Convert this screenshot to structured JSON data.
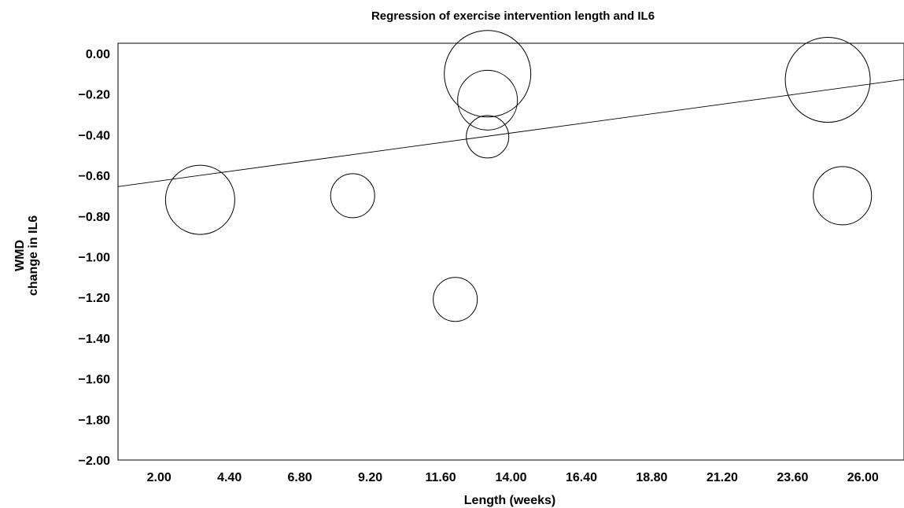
{
  "chart_data": {
    "type": "scatter",
    "subtype": "bubble-meta-regression",
    "title": "Regression of exercise intervention length and IL6",
    "xlabel": "Length (weeks)",
    "ylabel_lines": [
      "WMD",
      "change in IL6"
    ],
    "xlim": [
      0.6,
      27.4
    ],
    "ylim": [
      -2.0,
      0.05
    ],
    "x_tick_values": [
      2.0,
      4.4,
      6.8,
      9.2,
      11.6,
      14.0,
      16.4,
      18.8,
      21.2,
      23.6,
      26.0
    ],
    "x_tick_labels": [
      "2.00",
      "4.40",
      "6.80",
      "9.20",
      "11.60",
      "14.00",
      "16.40",
      "18.80",
      "21.20",
      "23.60",
      "26.00"
    ],
    "y_tick_values": [
      0,
      -0.2,
      -0.4,
      -0.6,
      -0.8,
      -1.0,
      -1.2,
      -1.4,
      -1.6,
      -1.8,
      -2.0
    ],
    "y_tick_labels": [
      "0.00",
      "−0.20",
      "−0.40",
      "−0.60",
      "−0.80",
      "−1.00",
      "−1.20",
      "−1.40",
      "−1.60",
      "−1.80",
      "−2.00"
    ],
    "points": [
      {
        "x": 3.4,
        "y": -0.72,
        "weight": 44
      },
      {
        "x": 8.6,
        "y": -0.7,
        "weight": 28
      },
      {
        "x": 12.1,
        "y": -1.21,
        "weight": 28
      },
      {
        "x": 13.2,
        "y": -0.1,
        "weight": 55
      },
      {
        "x": 13.2,
        "y": -0.23,
        "weight": 38
      },
      {
        "x": 13.2,
        "y": -0.41,
        "weight": 27
      },
      {
        "x": 24.8,
        "y": -0.13,
        "weight": 54
      },
      {
        "x": 25.3,
        "y": -0.7,
        "weight": 37
      }
    ],
    "regression_line": {
      "x": [
        0.6,
        27.4
      ],
      "y": [
        -0.655,
        -0.128
      ]
    },
    "grid": false,
    "legend": "none"
  }
}
